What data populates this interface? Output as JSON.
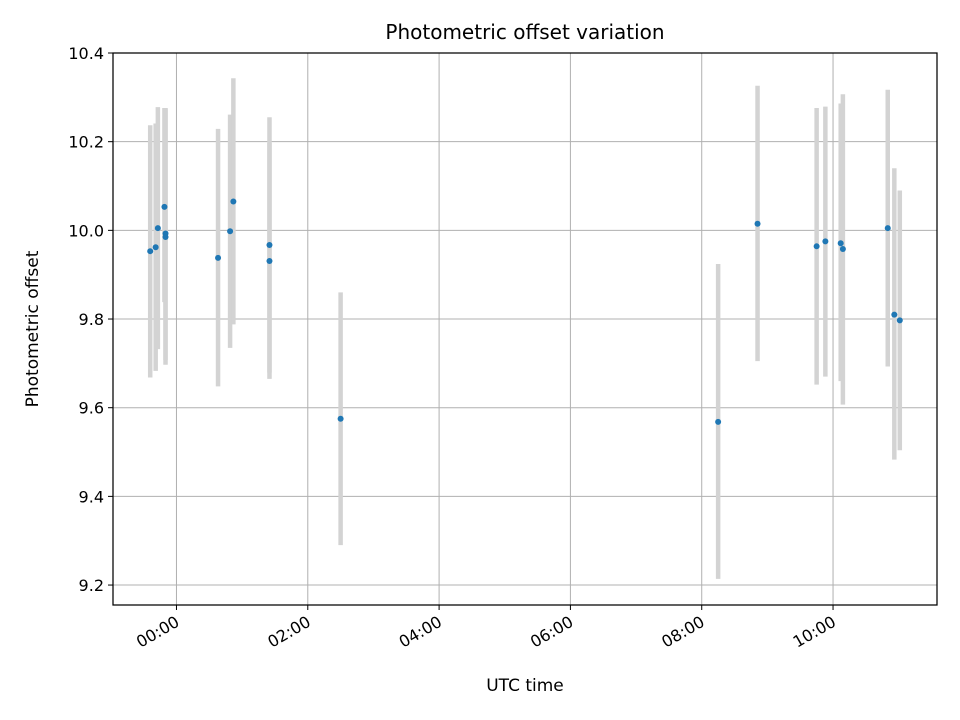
{
  "chart_data": {
    "type": "scatter",
    "title": "Photometric offset variation",
    "xlabel": "UTC time",
    "ylabel": "Photometric offset",
    "x_axis_kind": "time",
    "xlim": [
      "-00:58",
      "11:35"
    ],
    "ylim": [
      9.155,
      10.4
    ],
    "x_ticks": [
      "00:00",
      "02:00",
      "04:00",
      "06:00",
      "08:00",
      "10:00"
    ],
    "y_ticks": [
      9.2,
      9.4,
      9.6,
      9.8,
      10.0,
      10.2,
      10.4
    ],
    "grid": true,
    "point_color": "#1f77b4",
    "errorbar_color": "#d3d3d3",
    "points": [
      {
        "x": "-00:24",
        "y": 9.953,
        "low": 9.668,
        "high": 10.237
      },
      {
        "x": "-00:19",
        "y": 9.962,
        "low": 9.683,
        "high": 10.241
      },
      {
        "x": "-00:17",
        "y": 10.005,
        "low": 9.732,
        "high": 10.278
      },
      {
        "x": "-00:11",
        "y": 10.053,
        "low": 9.838,
        "high": 10.276
      },
      {
        "x": "-00:10",
        "y": 9.993,
        "low": 9.708,
        "high": 10.276
      },
      {
        "x": "-00:10",
        "y": 9.985,
        "low": 9.697,
        "high": 10.273
      },
      {
        "x": "00:38",
        "y": 9.938,
        "low": 9.648,
        "high": 10.229
      },
      {
        "x": "00:49",
        "y": 9.998,
        "low": 9.735,
        "high": 10.261
      },
      {
        "x": "00:52",
        "y": 10.065,
        "low": 9.788,
        "high": 10.343
      },
      {
        "x": "01:25",
        "y": 9.967,
        "low": 9.679,
        "high": 10.255
      },
      {
        "x": "01:25",
        "y": 9.931,
        "low": 9.665,
        "high": 10.197
      },
      {
        "x": "02:30",
        "y": 9.575,
        "low": 9.29,
        "high": 9.86
      },
      {
        "x": "08:15",
        "y": 9.568,
        "low": 9.214,
        "high": 9.924
      },
      {
        "x": "08:51",
        "y": 10.015,
        "low": 9.705,
        "high": 10.326
      },
      {
        "x": "09:45",
        "y": 9.964,
        "low": 9.652,
        "high": 10.276
      },
      {
        "x": "09:53",
        "y": 9.975,
        "low": 9.67,
        "high": 10.279
      },
      {
        "x": "10:07",
        "y": 9.971,
        "low": 9.66,
        "high": 10.286
      },
      {
        "x": "10:09",
        "y": 9.958,
        "low": 9.607,
        "high": 10.307
      },
      {
        "x": "10:50",
        "y": 10.005,
        "low": 9.693,
        "high": 10.317
      },
      {
        "x": "10:56",
        "y": 9.81,
        "low": 9.483,
        "high": 10.14
      },
      {
        "x": "11:01",
        "y": 9.797,
        "low": 9.504,
        "high": 10.09
      }
    ]
  }
}
